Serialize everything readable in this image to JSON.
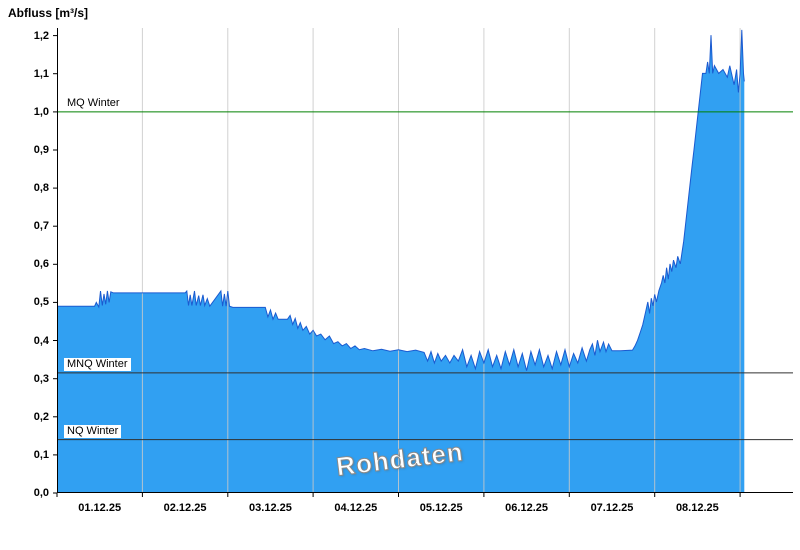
{
  "chart_data": {
    "type": "area",
    "title": "Abfluss [m³/s]",
    "watermark": "Rohdaten",
    "xlim": [
      0,
      8.62
    ],
    "ylim": [
      0,
      1.22
    ],
    "x_unit": "days since 01.12.25 00:00",
    "x_tick_labels": [
      "01.12.25",
      "02.12.25",
      "03.12.25",
      "04.12.25",
      "05.12.25",
      "06.12.25",
      "07.12.25",
      "08.12.25"
    ],
    "y_ticks": [
      {
        "value": 0.0,
        "label": "0,0"
      },
      {
        "value": 0.1,
        "label": "0,1"
      },
      {
        "value": 0.2,
        "label": "0,2"
      },
      {
        "value": 0.3,
        "label": "0,3"
      },
      {
        "value": 0.4,
        "label": "0,4"
      },
      {
        "value": 0.5,
        "label": "0,5"
      },
      {
        "value": 0.6,
        "label": "0,6"
      },
      {
        "value": 0.7,
        "label": "0,7"
      },
      {
        "value": 0.8,
        "label": "0,8"
      },
      {
        "value": 0.9,
        "label": "0,9"
      },
      {
        "value": 1.0,
        "label": "1,0"
      },
      {
        "value": 1.1,
        "label": "1,1"
      },
      {
        "value": 1.2,
        "label": "1,2"
      }
    ],
    "grid": {
      "day_boundaries": [
        1,
        2,
        3,
        4,
        5,
        6,
        7,
        8
      ],
      "color": "#c9c9c9"
    },
    "axis_color": "#000000",
    "ref_lines": [
      {
        "label": "MQ Winter",
        "value": 1.0,
        "color": "#008000"
      },
      {
        "label": "MNQ Winter",
        "value": 0.315,
        "color": "#303030"
      },
      {
        "label": "NQ Winter",
        "value": 0.14,
        "color": "#303030"
      }
    ],
    "series": [
      {
        "name": "Abfluss Rohdaten",
        "fill_color": "#31a0f2",
        "line_color": "#1a5ad0",
        "points": [
          [
            0.0,
            0.49
          ],
          [
            0.44,
            0.49
          ],
          [
            0.46,
            0.5
          ],
          [
            0.49,
            0.488
          ],
          [
            0.51,
            0.53
          ],
          [
            0.53,
            0.492
          ],
          [
            0.55,
            0.522
          ],
          [
            0.57,
            0.495
          ],
          [
            0.59,
            0.53
          ],
          [
            0.61,
            0.5
          ],
          [
            0.63,
            0.528
          ],
          [
            0.66,
            0.525
          ],
          [
            1.5,
            0.525
          ],
          [
            1.52,
            0.53
          ],
          [
            1.54,
            0.492
          ],
          [
            1.56,
            0.52
          ],
          [
            1.58,
            0.492
          ],
          [
            1.61,
            0.53
          ],
          [
            1.63,
            0.492
          ],
          [
            1.66,
            0.518
          ],
          [
            1.68,
            0.492
          ],
          [
            1.71,
            0.52
          ],
          [
            1.73,
            0.492
          ],
          [
            1.76,
            0.51
          ],
          [
            1.79,
            0.49
          ],
          [
            1.92,
            0.53
          ],
          [
            1.94,
            0.49
          ],
          [
            1.96,
            0.522
          ],
          [
            1.98,
            0.49
          ],
          [
            2.0,
            0.53
          ],
          [
            2.02,
            0.49
          ],
          [
            2.06,
            0.487
          ],
          [
            2.44,
            0.487
          ],
          [
            2.47,
            0.462
          ],
          [
            2.5,
            0.48
          ],
          [
            2.53,
            0.456
          ],
          [
            2.56,
            0.472
          ],
          [
            2.59,
            0.456
          ],
          [
            2.7,
            0.456
          ],
          [
            2.73,
            0.466
          ],
          [
            2.76,
            0.442
          ],
          [
            2.79,
            0.458
          ],
          [
            2.82,
            0.432
          ],
          [
            2.85,
            0.447
          ],
          [
            2.88,
            0.427
          ],
          [
            2.92,
            0.437
          ],
          [
            2.96,
            0.417
          ],
          [
            3.0,
            0.427
          ],
          [
            3.04,
            0.412
          ],
          [
            3.09,
            0.417
          ],
          [
            3.14,
            0.402
          ],
          [
            3.19,
            0.412
          ],
          [
            3.24,
            0.392
          ],
          [
            3.29,
            0.397
          ],
          [
            3.34,
            0.386
          ],
          [
            3.39,
            0.392
          ],
          [
            3.44,
            0.379
          ],
          [
            3.49,
            0.386
          ],
          [
            3.54,
            0.376
          ],
          [
            3.6,
            0.379
          ],
          [
            3.7,
            0.373
          ],
          [
            3.8,
            0.377
          ],
          [
            3.9,
            0.372
          ],
          [
            4.0,
            0.376
          ],
          [
            4.1,
            0.371
          ],
          [
            4.2,
            0.375
          ],
          [
            4.3,
            0.369
          ],
          [
            4.34,
            0.346
          ],
          [
            4.38,
            0.371
          ],
          [
            4.42,
            0.341
          ],
          [
            4.46,
            0.366
          ],
          [
            4.5,
            0.346
          ],
          [
            4.55,
            0.361
          ],
          [
            4.6,
            0.341
          ],
          [
            4.65,
            0.361
          ],
          [
            4.7,
            0.346
          ],
          [
            4.75,
            0.376
          ],
          [
            4.8,
            0.331
          ],
          [
            4.85,
            0.361
          ],
          [
            4.9,
            0.326
          ],
          [
            4.95,
            0.371
          ],
          [
            5.0,
            0.341
          ],
          [
            5.05,
            0.376
          ],
          [
            5.1,
            0.331
          ],
          [
            5.15,
            0.361
          ],
          [
            5.2,
            0.326
          ],
          [
            5.25,
            0.371
          ],
          [
            5.3,
            0.336
          ],
          [
            5.35,
            0.376
          ],
          [
            5.4,
            0.331
          ],
          [
            5.45,
            0.366
          ],
          [
            5.5,
            0.321
          ],
          [
            5.55,
            0.371
          ],
          [
            5.6,
            0.336
          ],
          [
            5.65,
            0.376
          ],
          [
            5.7,
            0.331
          ],
          [
            5.75,
            0.361
          ],
          [
            5.8,
            0.326
          ],
          [
            5.85,
            0.371
          ],
          [
            5.9,
            0.336
          ],
          [
            5.95,
            0.376
          ],
          [
            6.0,
            0.331
          ],
          [
            6.05,
            0.366
          ],
          [
            6.1,
            0.341
          ],
          [
            6.15,
            0.381
          ],
          [
            6.2,
            0.346
          ],
          [
            6.24,
            0.376
          ],
          [
            6.27,
            0.391
          ],
          [
            6.3,
            0.361
          ],
          [
            6.33,
            0.401
          ],
          [
            6.36,
            0.371
          ],
          [
            6.4,
            0.396
          ],
          [
            6.43,
            0.371
          ],
          [
            6.46,
            0.391
          ],
          [
            6.5,
            0.373
          ],
          [
            6.6,
            0.373
          ],
          [
            6.74,
            0.375
          ],
          [
            6.77,
            0.386
          ],
          [
            6.8,
            0.401
          ],
          [
            6.83,
            0.421
          ],
          [
            6.86,
            0.441
          ],
          [
            6.88,
            0.461
          ],
          [
            6.9,
            0.481
          ],
          [
            6.92,
            0.501
          ],
          [
            6.94,
            0.471
          ],
          [
            6.96,
            0.511
          ],
          [
            6.98,
            0.491
          ],
          [
            7.0,
            0.521
          ],
          [
            7.02,
            0.501
          ],
          [
            7.05,
            0.531
          ],
          [
            7.08,
            0.551
          ],
          [
            7.1,
            0.571
          ],
          [
            7.12,
            0.551
          ],
          [
            7.14,
            0.591
          ],
          [
            7.16,
            0.561
          ],
          [
            7.18,
            0.601
          ],
          [
            7.2,
            0.581
          ],
          [
            7.22,
            0.611
          ],
          [
            7.25,
            0.591
          ],
          [
            7.27,
            0.621
          ],
          [
            7.3,
            0.601
          ],
          [
            7.32,
            0.631
          ],
          [
            7.34,
            0.661
          ],
          [
            7.36,
            0.701
          ],
          [
            7.38,
            0.741
          ],
          [
            7.4,
            0.781
          ],
          [
            7.42,
            0.821
          ],
          [
            7.44,
            0.861
          ],
          [
            7.46,
            0.901
          ],
          [
            7.48,
            0.941
          ],
          [
            7.5,
            0.981
          ],
          [
            7.52,
            1.021
          ],
          [
            7.54,
            1.061
          ],
          [
            7.56,
            1.101
          ],
          [
            7.6,
            1.101
          ],
          [
            7.62,
            1.131
          ],
          [
            7.64,
            1.101
          ],
          [
            7.66,
            1.201
          ],
          [
            7.68,
            1.101
          ],
          [
            7.7,
            1.121
          ],
          [
            7.75,
            1.101
          ],
          [
            7.8,
            1.111
          ],
          [
            7.85,
            1.091
          ],
          [
            7.88,
            1.121
          ],
          [
            7.9,
            1.101
          ],
          [
            7.93,
            1.071
          ],
          [
            7.96,
            1.111
          ],
          [
            7.98,
            1.051
          ],
          [
            8.0,
            1.101
          ],
          [
            8.02,
            1.215
          ],
          [
            8.04,
            1.101
          ],
          [
            8.05,
            1.08
          ]
        ]
      }
    ]
  }
}
